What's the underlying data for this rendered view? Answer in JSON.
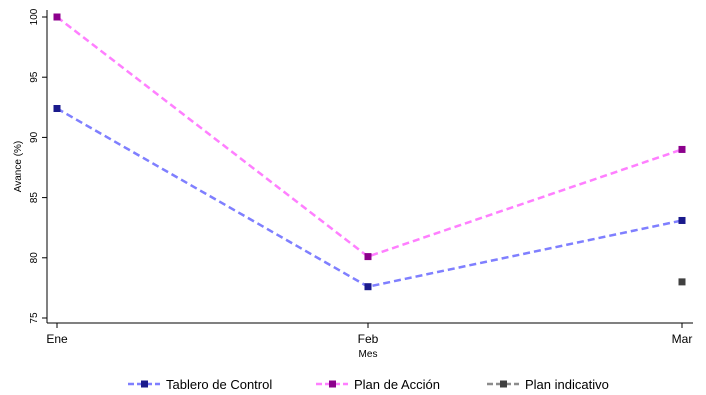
{
  "chart_data": {
    "type": "line",
    "xlabel": "Mes",
    "ylabel": "Avance (%)",
    "categories": [
      "Ene",
      "Feb",
      "Mar"
    ],
    "ylim": [
      75,
      100
    ],
    "yticks": [
      75,
      80,
      85,
      90,
      95,
      100
    ],
    "grid": false,
    "legend_position": "bottom",
    "series": [
      {
        "name": "Tablero de Control",
        "values": [
          92.4,
          77.6,
          83.1
        ],
        "line_color": "#7f7fff",
        "marker_color": "#1a1a8c",
        "line_style": "dashed"
      },
      {
        "name": "Plan de Acción",
        "values": [
          100,
          80.1,
          89
        ],
        "line_color": "#ff7fff",
        "marker_color": "#8c008c",
        "line_style": "dashed"
      },
      {
        "name": "Plan indicativo",
        "values": [
          null,
          null,
          78
        ],
        "line_color": "#8c8c8c",
        "marker_color": "#404040",
        "line_style": "dashed"
      }
    ]
  }
}
